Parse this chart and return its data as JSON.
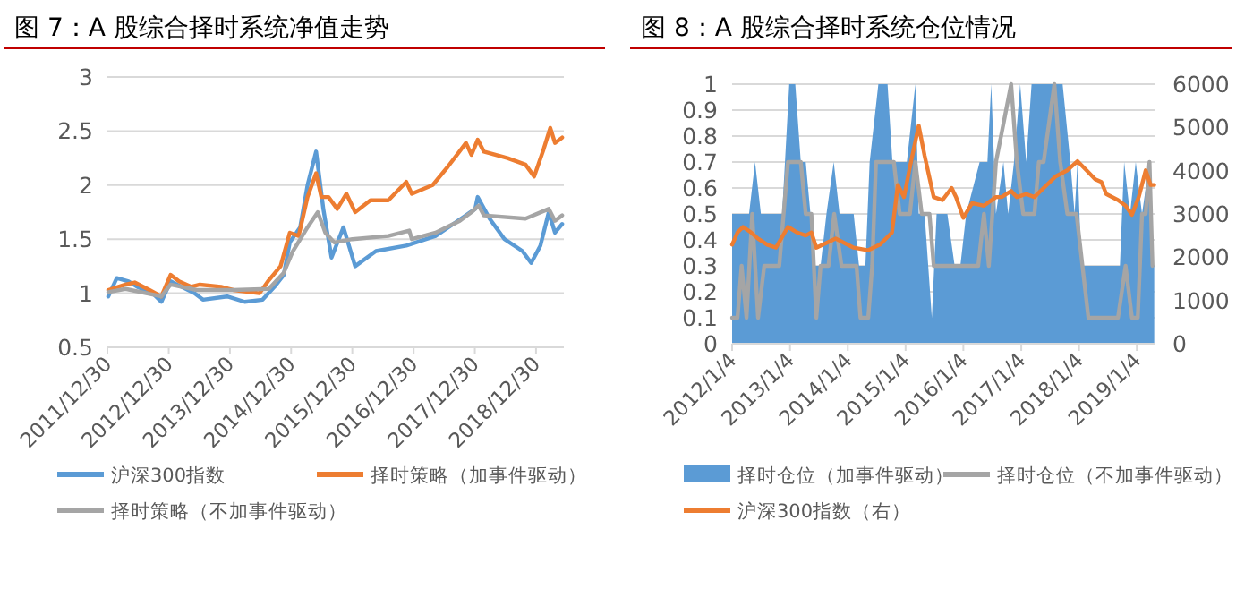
{
  "chart_data": [
    {
      "type": "line",
      "title": "图 7：A 股综合择时系统净值走势",
      "xlim": [
        "2011-12-30",
        "2019-06-14"
      ],
      "xticks": [
        {
          "value": "2011-12-30",
          "label": "2011/12/30"
        },
        {
          "value": "2012-12-30",
          "label": "2012/12/30"
        },
        {
          "value": "2013-12-30",
          "label": "2013/12/30"
        },
        {
          "value": "2014-12-30",
          "label": "2014/12/30"
        },
        {
          "value": "2015-12-30",
          "label": "2015/12/30"
        },
        {
          "value": "2016-12-30",
          "label": "2016/12/30"
        },
        {
          "value": "2017-12-30",
          "label": "2017/12/30"
        },
        {
          "value": "2018-12-30",
          "label": "2018/12/30"
        }
      ],
      "ylim": [
        0.5,
        3
      ],
      "yticks": [
        0.5,
        1,
        1.5,
        2,
        2.5,
        3
      ],
      "grid": "y",
      "legend": "bottom",
      "series": [
        {
          "name": "沪深300指数",
          "color": "#5b9bd5",
          "x": [
            "2012-01-04",
            "2012-02-24",
            "2012-05-04",
            "2012-06-25",
            "2012-09-25",
            "2012-11-16",
            "2013-01-10",
            "2013-06-01",
            "2013-07-22",
            "2013-12-13",
            "2014-03-28",
            "2014-07-13",
            "2014-09-22",
            "2014-11-16",
            "2014-12-22",
            "2015-02-22",
            "2015-04-07",
            "2015-05-28",
            "2015-07-10",
            "2015-08-28",
            "2015-11-07",
            "2016-01-16",
            "2016-05-19",
            "2016-11-16",
            "2017-05-10",
            "2017-11-07",
            "2018-01-01",
            "2018-01-16",
            "2018-03-28",
            "2018-06-25",
            "2018-10-10",
            "2018-12-01",
            "2019-01-25",
            "2019-03-16",
            "2019-04-22",
            "2019-06-04"
          ],
          "values": [
            0.97,
            1.14,
            1.11,
            1.06,
            1.0,
            0.92,
            1.11,
            1.0,
            0.94,
            0.97,
            0.92,
            0.94,
            1.06,
            1.17,
            1.47,
            1.61,
            2.0,
            2.31,
            1.78,
            1.33,
            1.61,
            1.25,
            1.39,
            1.44,
            1.53,
            1.72,
            1.78,
            1.89,
            1.69,
            1.5,
            1.39,
            1.28,
            1.44,
            1.75,
            1.56,
            1.64
          ]
        },
        {
          "name": "择时策略（加事件驱动）",
          "color": "#ed7d31",
          "x": [
            "2012-01-04",
            "2012-04-16",
            "2012-06-10",
            "2012-09-06",
            "2012-11-16",
            "2013-01-10",
            "2013-03-01",
            "2013-05-12",
            "2013-07-04",
            "2013-11-07",
            "2014-01-19",
            "2014-06-25",
            "2014-08-19",
            "2014-10-28",
            "2014-12-22",
            "2015-02-13",
            "2015-04-07",
            "2015-05-28",
            "2015-06-28",
            "2015-08-10",
            "2015-10-01",
            "2015-11-25",
            "2016-01-16",
            "2016-04-16",
            "2016-08-01",
            "2016-11-16",
            "2016-12-19",
            "2017-04-22",
            "2017-07-22",
            "2017-11-07",
            "2017-12-10",
            "2018-01-16",
            "2018-02-22",
            "2018-07-13",
            "2018-10-28",
            "2018-12-19",
            "2019-02-13",
            "2019-03-25",
            "2019-04-22",
            "2019-06-04"
          ],
          "values": [
            1.03,
            1.08,
            1.1,
            1.03,
            0.97,
            1.17,
            1.11,
            1.06,
            1.08,
            1.06,
            1.03,
            1.0,
            1.12,
            1.25,
            1.56,
            1.53,
            1.89,
            2.11,
            1.89,
            1.89,
            1.78,
            1.92,
            1.75,
            1.86,
            1.86,
            2.03,
            1.92,
            2.0,
            2.17,
            2.39,
            2.28,
            2.42,
            2.31,
            2.25,
            2.19,
            2.08,
            2.33,
            2.53,
            2.39,
            2.44
          ]
        },
        {
          "name": "择时策略（不加事件驱动）",
          "color": "#a5a5a5",
          "x": [
            "2012-01-04",
            "2012-04-16",
            "2012-11-16",
            "2013-01-10",
            "2013-06-16",
            "2014-01-19",
            "2014-08-19",
            "2014-11-16",
            "2015-01-10",
            "2015-04-07",
            "2015-06-07",
            "2015-07-22",
            "2015-09-13",
            "2015-12-30",
            "2016-08-01",
            "2016-12-04",
            "2016-12-19",
            "2017-05-10",
            "2017-10-01",
            "2017-12-10",
            "2018-01-22",
            "2018-02-22",
            "2018-10-28",
            "2019-03-16",
            "2019-04-22",
            "2019-06-04"
          ],
          "values": [
            1.01,
            1.04,
            0.97,
            1.08,
            1.03,
            1.03,
            1.04,
            1.19,
            1.39,
            1.61,
            1.75,
            1.56,
            1.47,
            1.5,
            1.53,
            1.58,
            1.5,
            1.56,
            1.67,
            1.75,
            1.81,
            1.72,
            1.69,
            1.78,
            1.67,
            1.72
          ]
        }
      ]
    },
    {
      "type": "area",
      "title": "图 8：A 股综合择时系统仓位情况",
      "xlim": [
        "2012-01-04",
        "2019-04-26"
      ],
      "xticks": [
        {
          "value": "2012-01-04",
          "label": "2012/1/4"
        },
        {
          "value": "2013-01-04",
          "label": "2013/1/4"
        },
        {
          "value": "2014-01-04",
          "label": "2014/1/4"
        },
        {
          "value": "2015-01-04",
          "label": "2015/1/4"
        },
        {
          "value": "2016-01-04",
          "label": "2016/1/4"
        },
        {
          "value": "2017-01-04",
          "label": "2017/1/4"
        },
        {
          "value": "2018-01-04",
          "label": "2018/1/4"
        },
        {
          "value": "2019-01-04",
          "label": "2019/1/4"
        }
      ],
      "ylim": [
        0,
        1
      ],
      "yticks": [
        0,
        0.1,
        0.2,
        0.3,
        0.4,
        0.5,
        0.6,
        0.7,
        0.8,
        0.9,
        1
      ],
      "y2lim": [
        0,
        6000
      ],
      "y2ticks": [
        0,
        1000,
        2000,
        3000,
        4000,
        5000,
        6000
      ],
      "grid": "y",
      "legend": "bottom",
      "series": [
        {
          "name": "择时仓位（加事件驱动）",
          "color": "#5b9bd5",
          "x": [
            "2012-01-04",
            "2012-04-20",
            "2012-05-28",
            "2012-07-04",
            "2012-11-15",
            "2012-12-30",
            "2013-02-06",
            "2013-03-13",
            "2013-04-13",
            "2013-05-13",
            "2013-06-10",
            "2013-07-16",
            "2013-08-22",
            "2013-10-07",
            "2013-11-13",
            "2014-02-10",
            "2014-03-16",
            "2014-04-25",
            "2014-05-22",
            "2014-07-16",
            "2014-09-12",
            "2014-10-13",
            "2015-01-12",
            "2015-03-07",
            "2015-03-28",
            "2015-05-04",
            "2015-06-19",
            "2015-07-19",
            "2015-09-25",
            "2015-11-10",
            "2015-12-16",
            "2016-01-22",
            "2016-04-16",
            "2016-06-04",
            "2016-06-28",
            "2016-07-28",
            "2016-09-13",
            "2016-10-13",
            "2016-11-19",
            "2016-12-28",
            "2017-02-04",
            "2017-03-10",
            "2017-09-22",
            "2017-11-10",
            "2017-12-07",
            "2017-12-25",
            "2018-01-19",
            "2018-09-19",
            "2018-10-16",
            "2018-11-22",
            "2018-12-28",
            "2019-02-06",
            "2019-03-25",
            "2019-04-09",
            "2019-04-24"
          ],
          "values": [
            0.5,
            0.5,
            0.7,
            0.5,
            0.5,
            1,
            1,
            0.7,
            0.7,
            0.5,
            0.3,
            0.3,
            0.5,
            0.7,
            0.5,
            0.5,
            0.3,
            0.3,
            0.7,
            1,
            1,
            0.7,
            0.7,
            1,
            0.5,
            0.5,
            0.1,
            0.5,
            0.5,
            0.3,
            0.3,
            0.5,
            0.7,
            0.7,
            1,
            0.5,
            0.7,
            0.5,
            0.7,
            1,
            0.7,
            1,
            1,
            0.7,
            0.5,
            0.7,
            0.3,
            0.3,
            0.7,
            0.5,
            0.7,
            0.5,
            0.7,
            0.3,
            0.3
          ]
        },
        {
          "name": "择时仓位（不加事件驱动）",
          "type": "line",
          "color": "#a5a5a5",
          "x": [
            "2012-01-04",
            "2012-02-07",
            "2012-03-04",
            "2012-04-04",
            "2012-05-10",
            "2012-06-16",
            "2012-07-25",
            "2012-10-28",
            "2012-12-22",
            "2013-03-13",
            "2013-04-13",
            "2013-05-19",
            "2013-06-19",
            "2013-07-16",
            "2013-09-04",
            "2013-10-10",
            "2013-11-25",
            "2014-02-28",
            "2014-03-25",
            "2014-05-13",
            "2014-06-07",
            "2014-07-01",
            "2014-10-22",
            "2014-11-28",
            "2015-01-31",
            "2015-03-07",
            "2015-04-16",
            "2015-06-04",
            "2015-07-01",
            "2016-04-07",
            "2016-05-13",
            "2016-06-13",
            "2016-07-28",
            "2016-11-01",
            "2016-12-07",
            "2017-01-16",
            "2017-03-28",
            "2017-04-25",
            "2017-05-25",
            "2017-08-01",
            "2017-09-07",
            "2017-10-22",
            "2017-12-19",
            "2018-03-04",
            "2018-09-07",
            "2018-10-25",
            "2018-12-04",
            "2019-01-10",
            "2019-02-06",
            "2019-03-01",
            "2019-03-25",
            "2019-04-13"
          ],
          "values": [
            0.1,
            0.1,
            0.3,
            0.1,
            0.5,
            0.1,
            0.3,
            0.3,
            0.7,
            0.7,
            0.5,
            0.5,
            0.1,
            0.3,
            0.3,
            0.5,
            0.3,
            0.3,
            0.1,
            0.1,
            0.3,
            0.7,
            0.7,
            0.5,
            0.5,
            0.7,
            0.5,
            0.5,
            0.3,
            0.3,
            0.5,
            0.3,
            0.7,
            1,
            0.7,
            0.5,
            0.5,
            0.7,
            0.7,
            1,
            0.7,
            0.5,
            0.5,
            0.1,
            0.1,
            0.3,
            0.1,
            0.1,
            0.5,
            0.5,
            0.7,
            0.3
          ]
        },
        {
          "name": "沪深300指数（右）",
          "type": "line",
          "axis": "y2",
          "color": "#ed7d31",
          "x": [
            "2012-01-04",
            "2012-02-07",
            "2012-03-13",
            "2012-05-04",
            "2012-06-16",
            "2012-08-13",
            "2012-10-07",
            "2012-12-22",
            "2013-02-19",
            "2013-04-13",
            "2013-05-19",
            "2013-06-19",
            "2013-10-19",
            "2014-02-10",
            "2014-05-13",
            "2014-07-25",
            "2014-10-10",
            "2014-11-16",
            "2014-12-25",
            "2015-01-31",
            "2015-03-28",
            "2015-05-04",
            "2015-07-01",
            "2015-08-25",
            "2015-10-22",
            "2015-11-19",
            "2016-01-04",
            "2016-02-28",
            "2016-05-13",
            "2016-07-28",
            "2016-09-01",
            "2016-11-01",
            "2016-12-07",
            "2017-02-04",
            "2017-03-28",
            "2017-05-25",
            "2017-08-10",
            "2017-10-22",
            "2017-12-25",
            "2018-02-20",
            "2018-04-16",
            "2018-05-25",
            "2018-06-25",
            "2018-09-07",
            "2018-10-25",
            "2018-12-04",
            "2019-01-16",
            "2019-03-01",
            "2019-04-01",
            "2019-04-24"
          ],
          "values": [
            2290,
            2570,
            2700,
            2570,
            2430,
            2290,
            2220,
            2700,
            2570,
            2500,
            2570,
            2220,
            2430,
            2220,
            2160,
            2290,
            2570,
            3670,
            3390,
            4080,
            5040,
            4350,
            3390,
            3320,
            3600,
            3390,
            2910,
            3250,
            3190,
            3390,
            3390,
            3530,
            3390,
            3460,
            3390,
            3600,
            3870,
            4010,
            4220,
            4010,
            3800,
            3740,
            3460,
            3320,
            3190,
            2980,
            3390,
            4010,
            3670,
            3670
          ]
        }
      ]
    }
  ]
}
